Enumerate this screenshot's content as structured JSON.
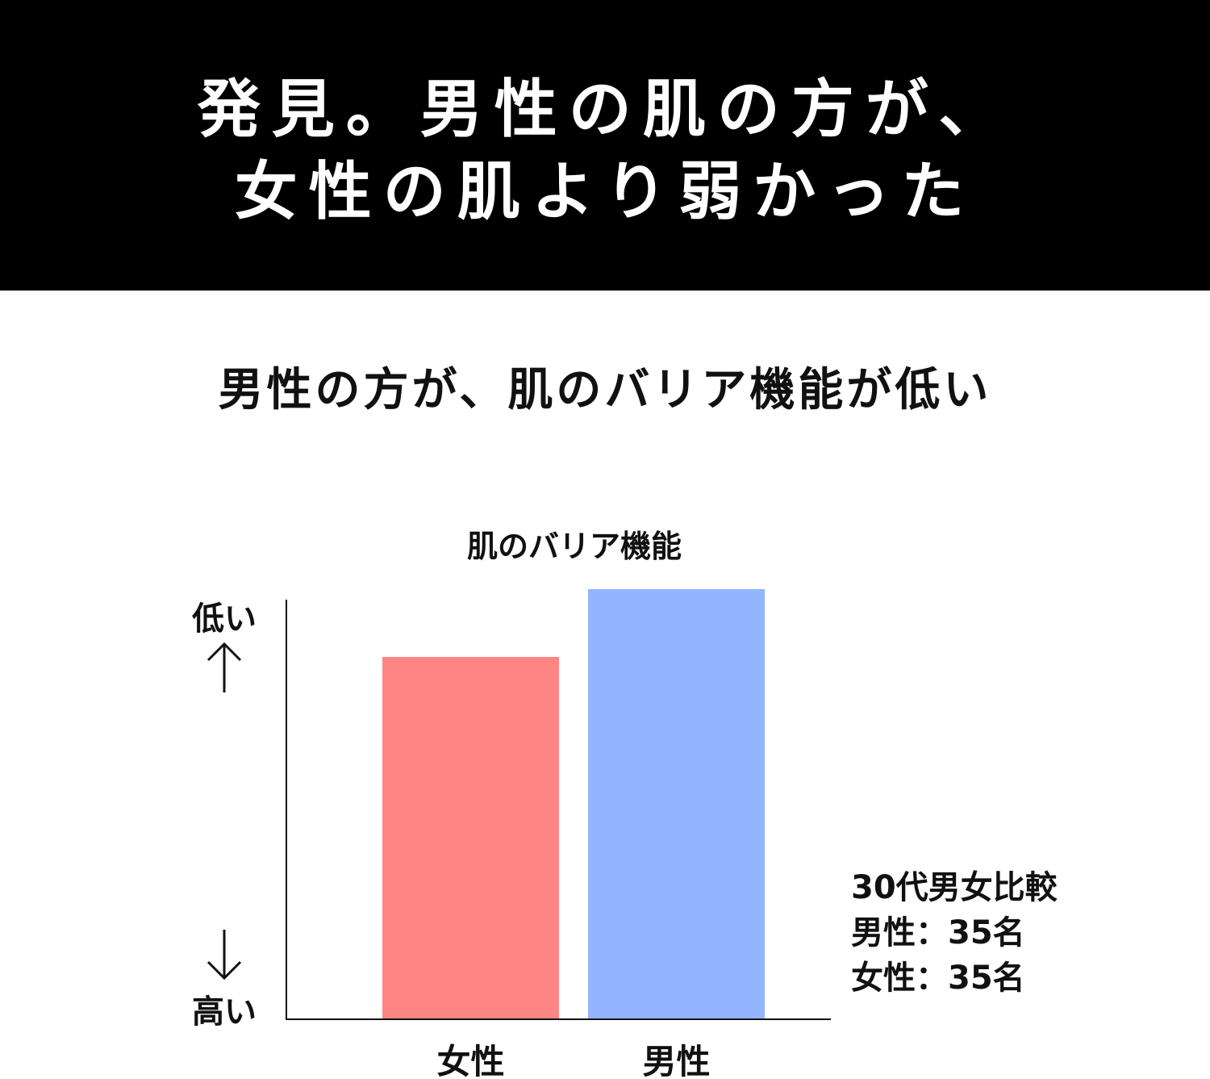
{
  "header": {
    "bg_color": "#000000",
    "line1": "発見。男性の肌の方が、",
    "line2": "女性の肌より弱かった"
  },
  "subtitle": "男性の方が、肌のバリア機能が低い",
  "chart_data": {
    "type": "bar",
    "title": "肌のバリア機能",
    "categories": [
      "女性",
      "男性"
    ],
    "values": [
      0.8,
      0.95
    ],
    "colors": [
      "#ff8585",
      "#94b4ff"
    ],
    "ylim": [
      0,
      1
    ],
    "y_top_label": "低い",
    "y_bottom_label": "高い",
    "y_axis_direction": "up = lower barrier function"
  },
  "note": {
    "line1": "30代男女比較",
    "line2": "男性：35名",
    "line3": "女性：35名"
  }
}
